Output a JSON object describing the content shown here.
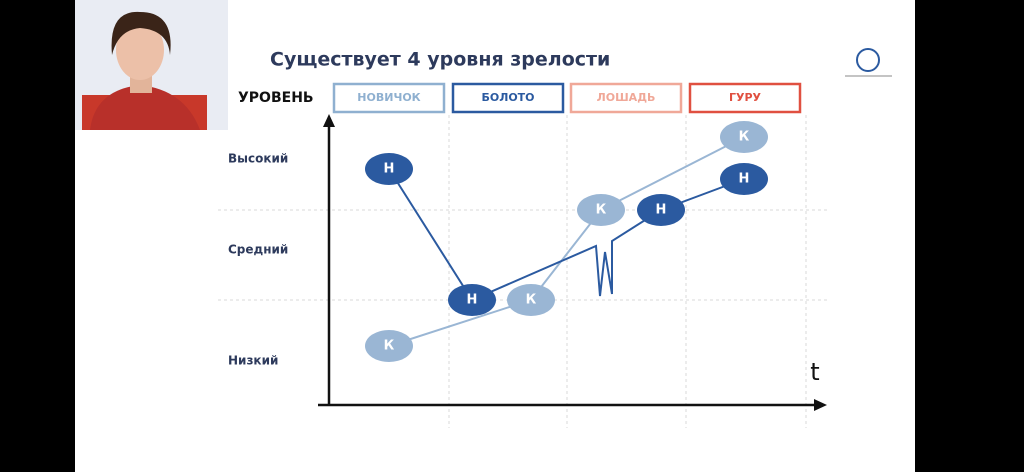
{
  "slide": {
    "title": "Существует 4 уровня зрелости",
    "level_label": "УРОВЕНЬ",
    "columns": [
      "НОВИЧОК",
      "БОЛОТО",
      "ЛОШАДЬ",
      "ГУРУ"
    ],
    "rows": [
      "Высокий",
      "Средний",
      "Низкий"
    ],
    "axis_label": "t",
    "nodes": [
      "Н",
      "Н",
      "Н",
      "Н",
      "К",
      "К",
      "К",
      "К"
    ]
  }
}
